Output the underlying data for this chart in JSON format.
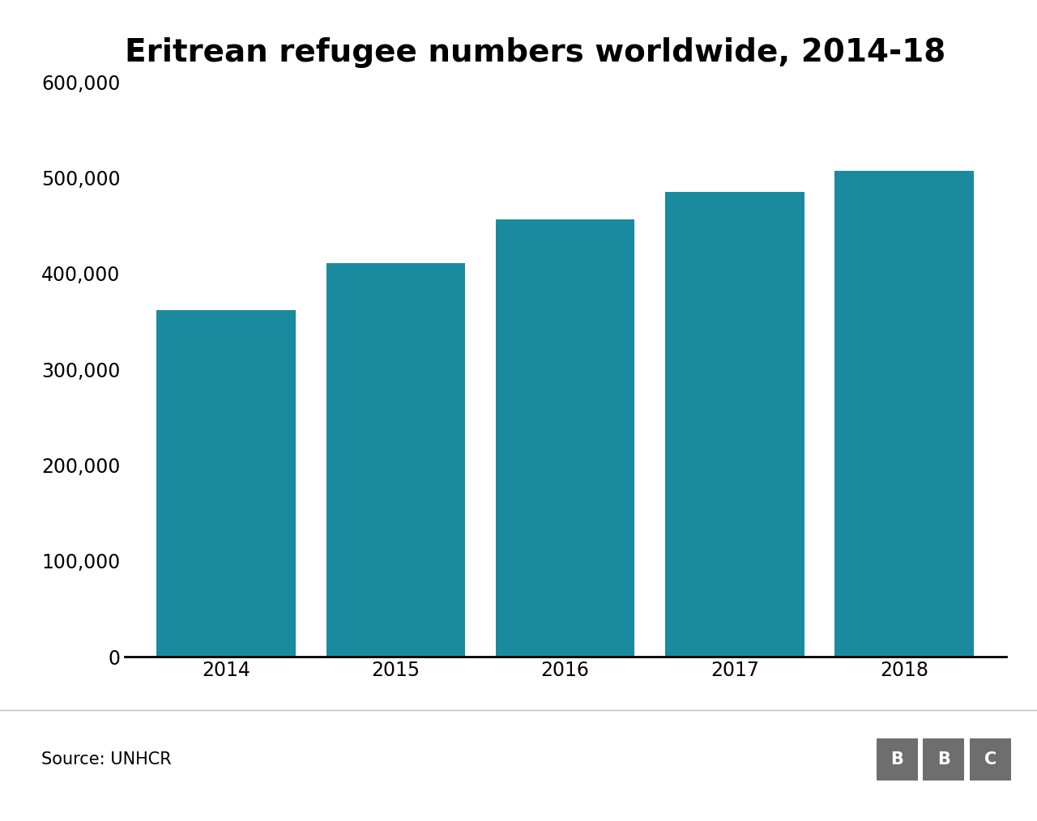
{
  "title": "Eritrean refugee numbers worldwide, 2014-18",
  "years": [
    "2014",
    "2015",
    "2016",
    "2017",
    "2018"
  ],
  "values": [
    362000,
    411000,
    457000,
    485000,
    507000
  ],
  "bar_color": "#1a8a9e",
  "background_color": "#ffffff",
  "ylim": [
    0,
    600000
  ],
  "yticks": [
    0,
    100000,
    200000,
    300000,
    400000,
    500000,
    600000
  ],
  "source_text": "Source: UNHCR",
  "title_fontsize": 28,
  "tick_fontsize": 17,
  "source_fontsize": 15,
  "bar_width": 0.82
}
